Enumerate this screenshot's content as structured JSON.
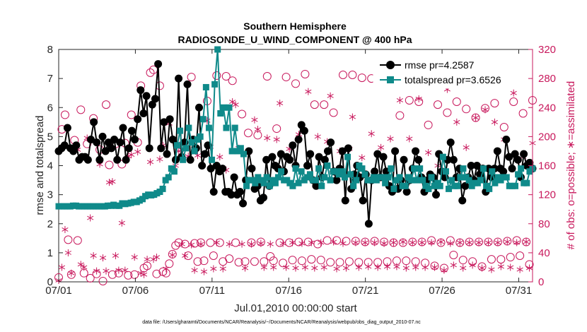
{
  "chart_data": {
    "type": "line",
    "title": "Southern Hemisphere",
    "subtitle": "RADIOSONDE_U_WIND_COMPONENT @ 400 hPa",
    "xlabel": "Jul.01,2010 00:00:00 start",
    "ylabel": "rmse and totalspread",
    "ylabel_right": "# of obs: o=possible; ∗=assimilated",
    "x_ticks": [
      "07/01",
      "07/06",
      "07/11",
      "07/16",
      "07/21",
      "07/26",
      "07/31"
    ],
    "x_tick_days": [
      0,
      5,
      10,
      15,
      20,
      25,
      30
    ],
    "xlim_days": [
      0,
      30.9
    ],
    "y_ticks": [
      "0",
      "1",
      "2",
      "3",
      "4",
      "5",
      "6",
      "7",
      "8"
    ],
    "ylim": [
      0,
      8
    ],
    "y2_ticks": [
      "0",
      "40",
      "80",
      "120",
      "160",
      "200",
      "240",
      "280",
      "320"
    ],
    "y2lim": [
      0,
      320
    ],
    "grid": false,
    "legend_position": "top-right",
    "footnote": "data file: /Users/gharamti/Documents/NCAR/Reanalysis/~/Documents/NCAR/Reanalysis/webpub/obs_diag_output_2010-07.nc",
    "colors": {
      "rmse": "#000000",
      "totalspread": "#0f8a8a",
      "obs": "#c8185c"
    },
    "series": [
      {
        "name": "rmse pr=4.2587",
        "marker": "filled-circle",
        "values": [
          4.5,
          4.6,
          4.7,
          5.3,
          4.6,
          4.5,
          4.7,
          4.2,
          4.3,
          4.3,
          4.2,
          4.9,
          5.5,
          4.8,
          4.2,
          5.0,
          4.5,
          4.8,
          4.6,
          4.9,
          4.2,
          4.8,
          5.3,
          4.2,
          4.6,
          5.2,
          4.9,
          5.6,
          6.6,
          5.8,
          6.4,
          4.6,
          6.1,
          6.3,
          7.5,
          4.6,
          5.5,
          4.4,
          5.6,
          4.9,
          4.2,
          7.0,
          4.3,
          4.8,
          6.8,
          4.2,
          4.9,
          4.6,
          6.0,
          4.0,
          4.4,
          4.7,
          3.9,
          3.1,
          4.0,
          3.8,
          3.9,
          3.1,
          3.1,
          3.0,
          3.6,
          3.0,
          3.1,
          2.7,
          3.5,
          4.5,
          3.9,
          3.2,
          3.3,
          2.8,
          2.9,
          4.2,
          3.3,
          4.3,
          4.0,
          3.9,
          4.4,
          3.8,
          4.3,
          4.2,
          4.7,
          4.0,
          4.9,
          5.4,
          5.2,
          4.0,
          4.4,
          3.5,
          3.3,
          4.3,
          3.6,
          4.2,
          4.5,
          4.8,
          3.8,
          3.5,
          3.9,
          4.5,
          2.8,
          4.6,
          3.2,
          3.7,
          4.0,
          3.6,
          2.8,
          3.7,
          2.0,
          3.5,
          3.8,
          4.4,
          3.6,
          4.3,
          3.8,
          3.3,
          3.1,
          4.5,
          3.2,
          3.5,
          4.2,
          3.1,
          3.5,
          3.9,
          4.5,
          4.2,
          3.6,
          3.1,
          3.5,
          3.7,
          3.6,
          3.0,
          4.4,
          3.8,
          3.6,
          4.2,
          4.8,
          4.2,
          3.6,
          3.9,
          2.8,
          3.3,
          3.6,
          4.0,
          3.5,
          4.0,
          3.7,
          3.9,
          3.1,
          3.9,
          3.6,
          3.9,
          4.5,
          3.9,
          3.8,
          4.9,
          4.3,
          3.9,
          4.4,
          4.2,
          3.6,
          4.4,
          4.0,
          4.1,
          3.9
        ]
      },
      {
        "name": "totalspread pr=3.6526",
        "marker": "filled-square",
        "values": [
          2.6,
          2.6,
          2.6,
          2.6,
          2.6,
          2.62,
          2.62,
          2.6,
          2.6,
          2.6,
          2.6,
          2.6,
          2.6,
          2.6,
          2.6,
          2.6,
          2.6,
          2.62,
          2.62,
          2.65,
          2.62,
          2.62,
          2.7,
          2.68,
          2.7,
          2.72,
          2.75,
          2.75,
          2.8,
          2.85,
          2.95,
          3.0,
          2.98,
          3.0,
          3.05,
          3.1,
          3.2,
          3.5,
          3.6,
          3.9,
          3.8,
          4.7,
          5.2,
          4.2,
          4.6,
          5.3,
          4.8,
          4.5,
          4.9,
          5.0,
          5.6,
          6.7,
          5.3,
          4.2,
          6.8,
          8.0,
          5.8,
          6.0,
          5.3,
          6.0,
          4.5,
          5.3,
          4.5,
          4.6,
          4.4,
          3.3,
          3.5,
          3.5,
          3.4,
          3.6,
          3.5,
          3.4,
          3.6,
          3.3,
          3.5,
          3.4,
          3.6,
          3.8,
          3.5,
          3.5,
          3.4,
          3.3,
          3.9,
          3.4,
          3.8,
          3.5,
          3.6,
          3.7,
          3.5,
          3.5,
          3.9,
          3.3,
          3.6,
          4.0,
          3.5,
          3.8,
          3.8,
          3.7,
          3.8,
          3.6,
          4.3,
          3.7,
          3.3,
          3.5,
          4.0,
          3.9,
          3.7,
          3.5,
          3.5,
          3.6,
          3.5,
          3.6,
          3.6,
          3.4,
          3.6,
          3.9,
          3.2,
          3.5,
          3.6,
          3.3,
          3.3,
          3.6,
          3.5,
          3.9,
          3.5,
          3.9,
          3.5,
          3.3,
          3.2,
          3.6,
          3.3,
          3.4,
          3.3,
          4.3,
          3.8,
          3.2,
          3.5,
          3.3,
          3.3,
          3.6,
          3.9,
          3.6,
          3.5,
          3.3,
          3.4,
          3.4,
          3.5,
          3.9,
          3.3,
          3.2,
          3.8,
          3.4,
          3.6,
          3.5,
          3.6,
          3.6,
          3.3,
          3.3,
          3.3,
          3.7,
          3.9,
          3.4,
          3.4,
          3.8,
          3.9
        ]
      },
      {
        "name": "possible observations",
        "axis": "right",
        "marker": "open-circle",
        "values": [
          6,
          210,
          230,
          58,
          10,
          195,
          57,
          237,
          12,
          190,
          5,
          225,
          11,
          182,
          1,
          244,
          161,
          10,
          190,
          12,
          162,
          191,
          9,
          230,
          10,
          192,
          270,
          19,
          22,
          288,
          292,
          11,
          270,
          14,
          12,
          25,
          38,
          50,
          54,
          188,
          52,
          36,
          282,
          53,
          28,
          54,
          29,
          249,
          54,
          36,
          284,
          54,
          28,
          283,
          32,
          277,
          54,
          27,
          231,
          28,
          205,
          54,
          28,
          202,
          55,
          28,
          283,
          35,
          29,
          211,
          54,
          26,
          282,
          54,
          30,
          273,
          55,
          29,
          286,
          55,
          31,
          244,
          52,
          30,
          244,
          57,
          27,
          233,
          57,
          27,
          285,
          56,
          28,
          285,
          56,
          27,
          281,
          55,
          27,
          280,
          56,
          27,
          286,
          55,
          28,
          289,
          54,
          29,
          229,
          54,
          29,
          250,
          55,
          28,
          248,
          55,
          26,
          216,
          57,
          22,
          244,
          54,
          19,
          233,
          57,
          37,
          248,
          54,
          30,
          238,
          55,
          28,
          226,
          55,
          21,
          239,
          55,
          31,
          246,
          55,
          31,
          213,
          56,
          34,
          248,
          57,
          36,
          232,
          55,
          24,
          250
        ]
      },
      {
        "name": "assimilated observations",
        "axis": "right",
        "marker": "asterisk",
        "values": [
          2,
          20,
          72,
          40,
          12,
          182,
          182,
          24,
          20,
          198,
          88,
          36,
          15,
          162,
          33,
          15,
          137,
          138,
          36,
          16,
          81,
          16,
          173,
          175,
          34,
          179,
          12,
          10,
          31,
          165,
          31,
          34,
          169,
          188,
          18,
          218,
          37,
          160,
          180,
          52,
          36,
          173,
          51,
          16,
          174,
          52,
          14,
          222,
          186,
          18,
          54,
          172,
          18,
          154,
          52,
          248,
          244,
          184,
          52,
          19,
          178,
          52,
          223,
          210,
          53,
          20,
          198,
          52,
          20,
          196,
          246,
          53,
          20,
          183,
          54,
          19,
          203,
          53,
          20,
          262,
          54,
          19,
          200,
          54,
          20,
          193,
          256,
          55,
          18,
          180,
          53,
          19,
          183,
          227,
          54,
          20,
          171,
          54,
          21,
          204,
          54,
          20,
          185,
          53,
          21,
          197,
          54,
          21,
          250,
          55,
          19,
          197,
          54,
          20,
          252,
          54,
          20,
          178,
          54,
          20,
          160,
          55,
          16,
          265,
          53,
          23,
          220,
          54,
          19,
          185,
          54,
          23,
          226,
          54,
          19,
          237,
          54,
          17,
          220,
          54,
          21,
          196,
          55,
          20,
          260,
          54,
          17,
          172,
          55,
          19,
          191
        ]
      }
    ]
  }
}
